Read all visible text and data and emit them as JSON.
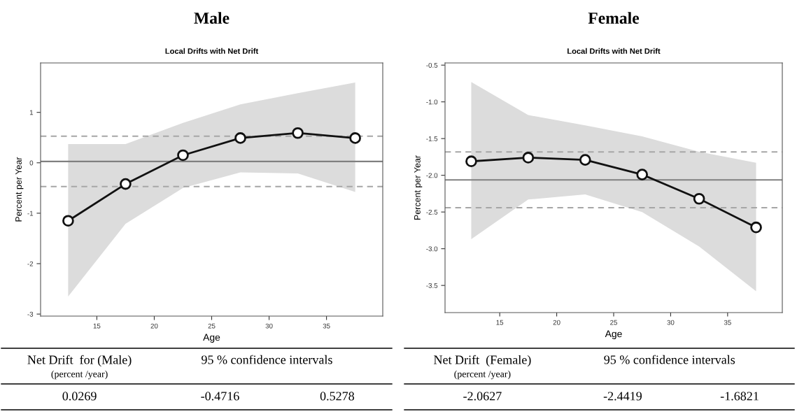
{
  "chart_data": [
    {
      "type": "line",
      "title": "Male",
      "subtitle": "Local Drifts with Net Drift",
      "xlabel": "Age",
      "ylabel": "Percent per Year",
      "x": [
        12.5,
        17.5,
        22.5,
        27.5,
        32.5,
        37.5
      ],
      "series": [
        {
          "color": "#111111",
          "values": [
            -1.15,
            -0.42,
            0.15,
            0.49,
            0.59,
            0.49
          ],
          "lower": [
            -2.65,
            -1.21,
            -0.5,
            -0.19,
            -0.21,
            -0.58
          ],
          "upper": [
            0.37,
            0.37,
            0.79,
            1.16,
            1.38,
            1.59
          ]
        }
      ],
      "xlim": [
        10.1,
        39.9
      ],
      "ylim": [
        -3.04,
        1.98
      ],
      "xticks": [
        15,
        20,
        25,
        30,
        35
      ],
      "yticks": [
        -3,
        -2,
        -1,
        0,
        1
      ],
      "ref_lines": [
        {
          "axis": "y",
          "value": 0.0269,
          "color": "#808080",
          "line_style": "solid"
        },
        {
          "axis": "y",
          "value": -0.4716,
          "color": "#a6a6a6",
          "line_style": "dashed"
        },
        {
          "axis": "y",
          "value": 0.5278,
          "color": "#a6a6a6",
          "line_style": "dashed"
        }
      ],
      "marker": "circle",
      "line_style": "solid",
      "grid": false,
      "annotations": [
        "Net Drift  for (Male)",
        "(percent /year)",
        "95 % confidence intervals",
        "0.0269",
        "-0.4716",
        "0.5278"
      ]
    },
    {
      "type": "line",
      "title": "Female",
      "subtitle": "Local Drifts with Net Drift",
      "xlabel": "Age",
      "ylabel": "Percent per Year",
      "x": [
        12.5,
        17.5,
        22.5,
        27.5,
        32.5,
        37.5
      ],
      "series": [
        {
          "color": "#111111",
          "values": [
            -1.81,
            -1.76,
            -1.79,
            -1.99,
            -2.32,
            -2.71
          ],
          "lower": [
            -2.87,
            -2.33,
            -2.26,
            -2.5,
            -2.97,
            -3.58
          ],
          "upper": [
            -0.73,
            -1.18,
            -1.32,
            -1.47,
            -1.68,
            -1.83
          ]
        }
      ],
      "xlim": [
        10.2,
        39.8
      ],
      "ylim": [
        -3.87,
        -0.47
      ],
      "xticks": [
        15,
        20,
        25,
        30,
        35
      ],
      "yticks": [
        {
          "value": -3.5,
          "label": "-3.5"
        },
        {
          "value": -3.0,
          "label": "-3.0"
        },
        {
          "value": -2.5,
          "label": "-2.5"
        },
        {
          "value": -2.0,
          "label": "-2.0"
        },
        {
          "value": -1.5,
          "label": "-1.5"
        },
        {
          "value": -1.0,
          "label": "-1.0"
        },
        {
          "value": -0.5,
          "label": "-0.5"
        }
      ],
      "ref_lines": [
        {
          "axis": "y",
          "value": -2.0627,
          "color": "#808080",
          "line_style": "solid"
        },
        {
          "axis": "y",
          "value": -2.4419,
          "color": "#a6a6a6",
          "line_style": "dashed"
        },
        {
          "axis": "y",
          "value": -1.6821,
          "color": "#a6a6a6",
          "line_style": "dashed"
        }
      ],
      "marker": "circle",
      "line_style": "solid",
      "grid": false,
      "annotations": [
        "Net Drift  (Female)",
        "(percent /year)",
        "95 % confidence intervals",
        "-2.0627",
        "-2.4419",
        "-1.6821"
      ]
    }
  ]
}
